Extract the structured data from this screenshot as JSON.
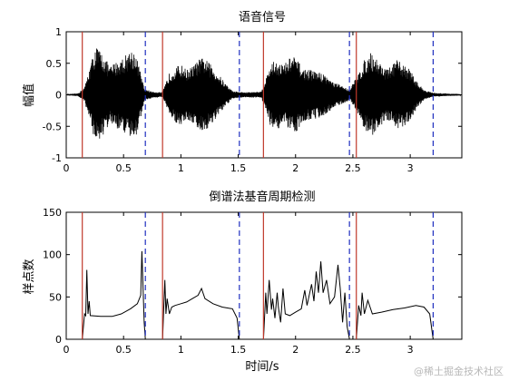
{
  "watermark": "@稀土掘金技术社区",
  "chart_data": [
    {
      "type": "line",
      "title": "语音信号",
      "ylabel": "幅值",
      "xlabel": "",
      "xlim": [
        0,
        3.45
      ],
      "ylim": [
        -1,
        1
      ],
      "xticks": [
        "0",
        "0.5",
        "1",
        "1.5",
        "2",
        "2.5",
        "3"
      ],
      "xtick_values": [
        0,
        0.5,
        1,
        1.5,
        2,
        2.5,
        3
      ],
      "yticks": [
        "-1",
        "-0.5",
        "0",
        "0.5",
        "1"
      ],
      "ytick_values": [
        -1,
        -0.5,
        0,
        0.5,
        1
      ],
      "grid": false,
      "legend": "none",
      "series": [
        {
          "color": "#000000",
          "envelope": [
            [
              0.0,
              0.01
            ],
            [
              0.1,
              0.02
            ],
            [
              0.16,
              0.12
            ],
            [
              0.22,
              0.55
            ],
            [
              0.26,
              0.78
            ],
            [
              0.32,
              0.65
            ],
            [
              0.38,
              0.45
            ],
            [
              0.45,
              0.55
            ],
            [
              0.5,
              0.6
            ],
            [
              0.56,
              0.72
            ],
            [
              0.6,
              0.7
            ],
            [
              0.64,
              0.42
            ],
            [
              0.68,
              0.1
            ],
            [
              0.75,
              0.05
            ],
            [
              0.84,
              0.04
            ],
            [
              0.9,
              0.35
            ],
            [
              0.96,
              0.45
            ],
            [
              1.0,
              0.48
            ],
            [
              1.05,
              0.4
            ],
            [
              1.1,
              0.45
            ],
            [
              1.15,
              0.55
            ],
            [
              1.2,
              0.6
            ],
            [
              1.26,
              0.48
            ],
            [
              1.32,
              0.35
            ],
            [
              1.38,
              0.2
            ],
            [
              1.45,
              0.06
            ],
            [
              1.55,
              0.04
            ],
            [
              1.7,
              0.05
            ],
            [
              1.74,
              0.25
            ],
            [
              1.78,
              0.5
            ],
            [
              1.84,
              0.55
            ],
            [
              1.9,
              0.48
            ],
            [
              1.96,
              0.62
            ],
            [
              2.0,
              0.6
            ],
            [
              2.06,
              0.42
            ],
            [
              2.12,
              0.4
            ],
            [
              2.18,
              0.38
            ],
            [
              2.26,
              0.32
            ],
            [
              2.33,
              0.2
            ],
            [
              2.4,
              0.15
            ],
            [
              2.47,
              0.08
            ],
            [
              2.55,
              0.35
            ],
            [
              2.6,
              0.55
            ],
            [
              2.66,
              0.68
            ],
            [
              2.72,
              0.55
            ],
            [
              2.8,
              0.4
            ],
            [
              2.88,
              0.55
            ],
            [
              2.94,
              0.5
            ],
            [
              3.0,
              0.4
            ],
            [
              3.06,
              0.2
            ],
            [
              3.12,
              0.08
            ],
            [
              3.2,
              0.03
            ],
            [
              3.45,
              0.01
            ]
          ]
        }
      ],
      "markers": {
        "voice_start": [
          0.14,
          0.84,
          1.72,
          2.53
        ],
        "voice_end": [
          0.69,
          1.51,
          2.47,
          3.2
        ],
        "start_color": "#c0392b",
        "end_color": "#1f2fbf",
        "end_style": "dashed"
      }
    },
    {
      "type": "line",
      "title": "倒谱法基音周期检测",
      "ylabel": "样点数",
      "xlabel": "时间/s",
      "xlim": [
        0,
        3.45
      ],
      "ylim": [
        0,
        150
      ],
      "xticks": [
        "0",
        "0.5",
        "1",
        "1.5",
        "2",
        "2.5",
        "3"
      ],
      "xtick_values": [
        0,
        0.5,
        1,
        1.5,
        2,
        2.5,
        3
      ],
      "yticks": [
        "0",
        "50",
        "100",
        "150"
      ],
      "ytick_values": [
        0,
        50,
        100,
        150
      ],
      "grid": false,
      "legend": "none",
      "series": [
        {
          "color": "#000000",
          "segments": [
            [
              [
                0.14,
                0
              ],
              [
                0.16,
                30
              ],
              [
                0.17,
                28
              ],
              [
                0.18,
                82
              ],
              [
                0.19,
                30
              ],
              [
                0.2,
                45
              ],
              [
                0.21,
                28
              ],
              [
                0.3,
                27
              ],
              [
                0.4,
                27
              ],
              [
                0.48,
                30
              ],
              [
                0.56,
                36
              ],
              [
                0.62,
                42
              ],
              [
                0.65,
                52
              ],
              [
                0.66,
                104
              ],
              [
                0.67,
                60
              ],
              [
                0.68,
                20
              ],
              [
                0.69,
                0
              ]
            ],
            [
              [
                0.84,
                0
              ],
              [
                0.85,
                35
              ],
              [
                0.86,
                70
              ],
              [
                0.87,
                30
              ],
              [
                0.88,
                48
              ],
              [
                0.9,
                30
              ],
              [
                0.92,
                38
              ],
              [
                0.95,
                40
              ],
              [
                1.0,
                42
              ],
              [
                1.05,
                44
              ],
              [
                1.1,
                48
              ],
              [
                1.15,
                52
              ],
              [
                1.18,
                60
              ],
              [
                1.21,
                48
              ],
              [
                1.28,
                42
              ],
              [
                1.36,
                38
              ],
              [
                1.45,
                36
              ],
              [
                1.49,
                25
              ],
              [
                1.51,
                0
              ]
            ],
            [
              [
                1.72,
                0
              ],
              [
                1.74,
                55
              ],
              [
                1.75,
                30
              ],
              [
                1.77,
                70
              ],
              [
                1.79,
                35
              ],
              [
                1.8,
                48
              ],
              [
                1.82,
                25
              ],
              [
                1.84,
                55
              ],
              [
                1.85,
                38
              ],
              [
                1.87,
                20
              ],
              [
                1.89,
                60
              ],
              [
                1.91,
                30
              ],
              [
                1.95,
                28
              ],
              [
                2.0,
                32
              ],
              [
                2.05,
                36
              ],
              [
                2.08,
                58
              ],
              [
                2.1,
                40
              ],
              [
                2.14,
                65
              ],
              [
                2.16,
                45
              ],
              [
                2.18,
                80
              ],
              [
                2.2,
                55
              ],
              [
                2.22,
                92
              ],
              [
                2.24,
                55
              ],
              [
                2.27,
                70
              ],
              [
                2.3,
                42
              ],
              [
                2.34,
                50
              ],
              [
                2.37,
                88
              ],
              [
                2.39,
                60
              ],
              [
                2.41,
                20
              ],
              [
                2.43,
                55
              ],
              [
                2.45,
                15
              ],
              [
                2.47,
                0
              ]
            ],
            [
              [
                2.53,
                0
              ],
              [
                2.55,
                40
              ],
              [
                2.57,
                28
              ],
              [
                2.58,
                55
              ],
              [
                2.6,
                30
              ],
              [
                2.63,
                46
              ],
              [
                2.67,
                30
              ],
              [
                2.75,
                32
              ],
              [
                2.85,
                35
              ],
              [
                2.95,
                37
              ],
              [
                3.05,
                40
              ],
              [
                3.12,
                38
              ],
              [
                3.17,
                30
              ],
              [
                3.2,
                0
              ]
            ]
          ]
        }
      ],
      "markers": {
        "voice_start": [
          0.14,
          0.84,
          1.72,
          2.53
        ],
        "voice_end": [
          0.69,
          1.51,
          2.47,
          3.2
        ],
        "start_color": "#c0392b",
        "end_color": "#1f2fbf",
        "end_style": "dashed"
      }
    }
  ]
}
